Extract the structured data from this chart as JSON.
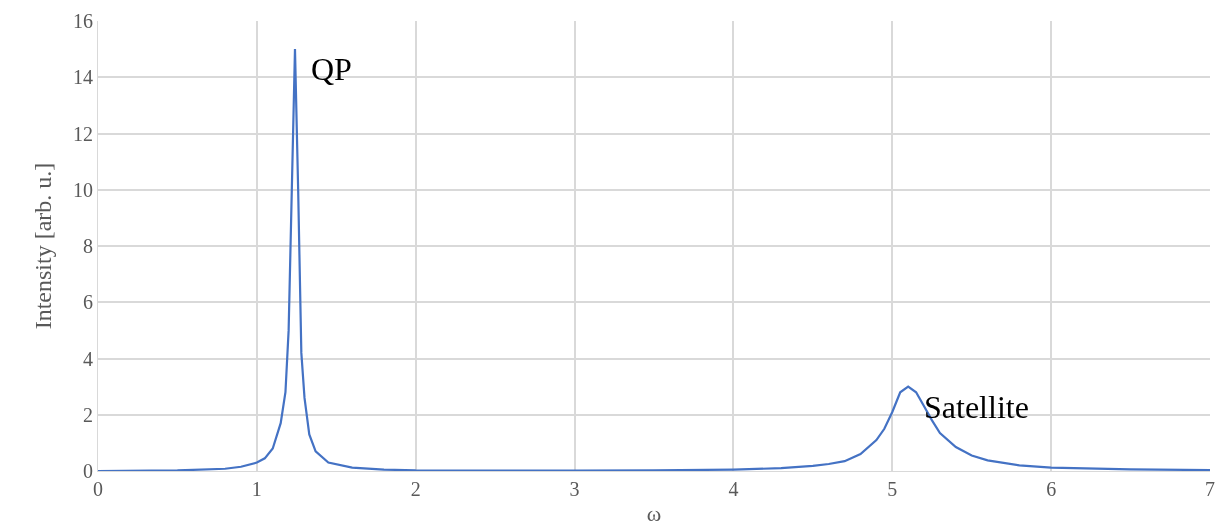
{
  "chart_data": {
    "type": "line",
    "xlabel": "ω",
    "ylabel": "Intensity [arb. u.]",
    "x": [
      0,
      0.5,
      0.8,
      0.9,
      1.0,
      1.05,
      1.1,
      1.15,
      1.18,
      1.2,
      1.22,
      1.24,
      1.26,
      1.28,
      1.3,
      1.33,
      1.37,
      1.45,
      1.6,
      1.8,
      2,
      3,
      3.5,
      4,
      4.3,
      4.5,
      4.6,
      4.7,
      4.8,
      4.9,
      4.95,
      5.0,
      5.05,
      5.1,
      5.15,
      5.2,
      5.25,
      5.3,
      5.4,
      5.5,
      5.6,
      5.8,
      6,
      6.5,
      7
    ],
    "series": [
      {
        "color": "#4472c4",
        "values": [
          0,
          0.02,
          0.08,
          0.15,
          0.3,
          0.45,
          0.8,
          1.7,
          2.8,
          5,
          10,
          15,
          10,
          4.2,
          2.6,
          1.3,
          0.7,
          0.3,
          0.12,
          0.05,
          0.02,
          0.01,
          0.02,
          0.05,
          0.1,
          0.18,
          0.25,
          0.35,
          0.6,
          1.1,
          1.5,
          2.1,
          2.8,
          3.0,
          2.8,
          2.3,
          1.8,
          1.35,
          0.85,
          0.55,
          0.38,
          0.2,
          0.12,
          0.06,
          0.03
        ]
      }
    ],
    "annotations": [
      {
        "text": "QP",
        "x": 1.24,
        "y": 15
      },
      {
        "text": "Satellite",
        "x": 5.1,
        "y": 3
      }
    ],
    "xlim": [
      0,
      7
    ],
    "xticks": [
      0,
      1,
      2,
      3,
      4,
      5,
      6,
      7
    ],
    "ylim": [
      0,
      16
    ],
    "yticks": [
      0,
      2,
      4,
      6,
      8,
      10,
      12,
      14,
      16
    ],
    "grid": true,
    "marker": "none",
    "line_style": "solid"
  }
}
